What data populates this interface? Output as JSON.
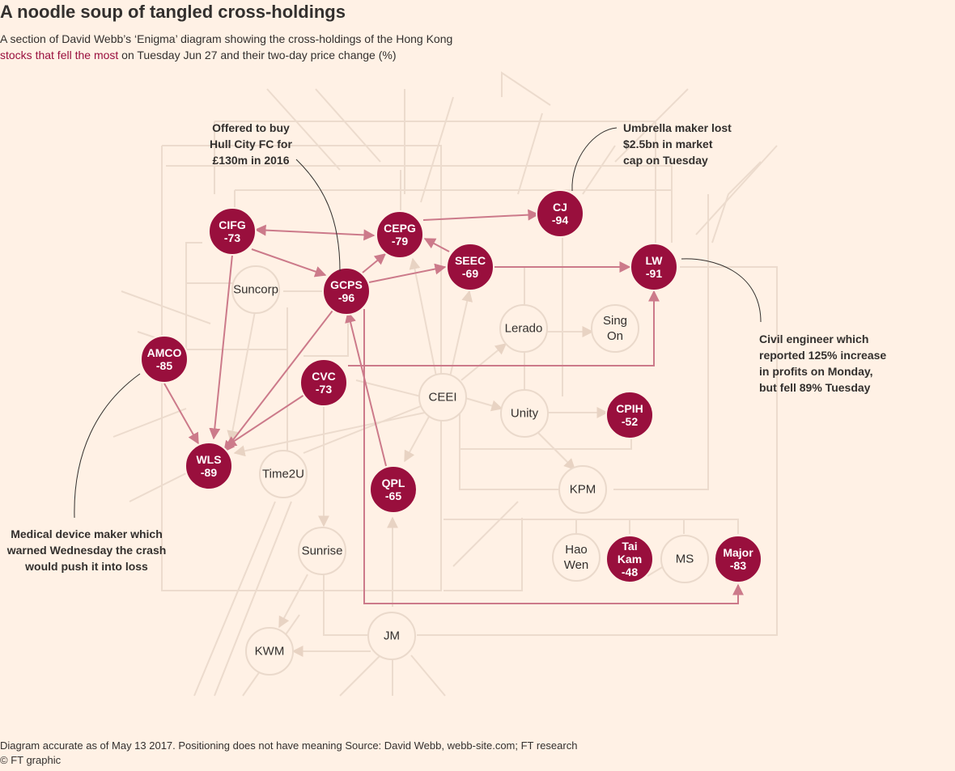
{
  "title": "A noodle soup of tangled cross-holdings",
  "subtitle": {
    "line1": "A section of David Webb’s ‘Enigma’ diagram showing the cross-holdings of the Hong Kong",
    "highlight": "stocks that fell the most",
    "line2_rest": " on Tuesday Jun 27 and their two-day price change  (%)"
  },
  "colors": {
    "background": "#fff1e5",
    "fell_most_fill": "#990f3d",
    "fell_most_edge": "#cc7a8a",
    "other_node_stroke": "#ead9cb",
    "other_edge": "#ead9cb",
    "text": "#33302e"
  },
  "nodes": [
    {
      "id": "CIFG",
      "lines": [
        "CIFG",
        "-73"
      ],
      "fell": true
    },
    {
      "id": "CEPG",
      "lines": [
        "CEPG",
        "-79"
      ],
      "fell": true
    },
    {
      "id": "CJ",
      "lines": [
        "CJ",
        "-94"
      ],
      "fell": true
    },
    {
      "id": "SEEC",
      "lines": [
        "SEEC",
        "-69"
      ],
      "fell": true
    },
    {
      "id": "LW",
      "lines": [
        "LW",
        "-91"
      ],
      "fell": true
    },
    {
      "id": "GCPS",
      "lines": [
        "GCPS",
        "-96"
      ],
      "fell": true
    },
    {
      "id": "AMCO",
      "lines": [
        "AMCO",
        "-85"
      ],
      "fell": true
    },
    {
      "id": "CVC",
      "lines": [
        "CVC",
        "-73"
      ],
      "fell": true
    },
    {
      "id": "WLS",
      "lines": [
        "WLS",
        "-89"
      ],
      "fell": true
    },
    {
      "id": "QPL",
      "lines": [
        "QPL",
        "-65"
      ],
      "fell": true
    },
    {
      "id": "CPIH",
      "lines": [
        "CPIH",
        "-52"
      ],
      "fell": true
    },
    {
      "id": "TaiKam",
      "lines": [
        "Tai",
        "Kam",
        "-48"
      ],
      "fell": true
    },
    {
      "id": "Major",
      "lines": [
        "Major",
        "-83"
      ],
      "fell": true
    },
    {
      "id": "Suncorp",
      "lines": [
        "Suncorp"
      ],
      "fell": false
    },
    {
      "id": "Lerado",
      "lines": [
        "Lerado"
      ],
      "fell": false
    },
    {
      "id": "SingOn",
      "lines": [
        "Sing",
        "On"
      ],
      "fell": false
    },
    {
      "id": "CEEI",
      "lines": [
        "CEEI"
      ],
      "fell": false
    },
    {
      "id": "Unity",
      "lines": [
        "Unity"
      ],
      "fell": false
    },
    {
      "id": "Time2U",
      "lines": [
        "Time2U"
      ],
      "fell": false
    },
    {
      "id": "KPM",
      "lines": [
        "KPM"
      ],
      "fell": false
    },
    {
      "id": "HaoWen",
      "lines": [
        "Hao",
        "Wen"
      ],
      "fell": false
    },
    {
      "id": "MS",
      "lines": [
        "MS"
      ],
      "fell": false
    },
    {
      "id": "Sunrise",
      "lines": [
        "Sunrise"
      ],
      "fell": false
    },
    {
      "id": "JM",
      "lines": [
        "JM"
      ],
      "fell": false
    },
    {
      "id": "KWM",
      "lines": [
        "KWM"
      ],
      "fell": false
    }
  ],
  "annotations": [
    {
      "id": "gcps",
      "lines": [
        "Offered to buy",
        "Hull City FC for",
        "£130m in 2016"
      ]
    },
    {
      "id": "cj",
      "lines": [
        "Umbrella maker lost",
        "$2.5bn in market",
        "cap on Tuesday"
      ]
    },
    {
      "id": "lw",
      "lines": [
        "Civil engineer which",
        "reported 125% increase",
        "in profits on Monday,",
        "but fell 89% Tuesday"
      ]
    },
    {
      "id": "amco",
      "lines": [
        "Medical device maker which",
        "warned Wednesday the crash",
        "would push it into loss"
      ]
    }
  ],
  "footnote": "Diagram accurate as of May 13 2017. Positioning does not have meaning    Source: David Webb, webb-site.com; FT research",
  "credit": "© FT graphic"
}
